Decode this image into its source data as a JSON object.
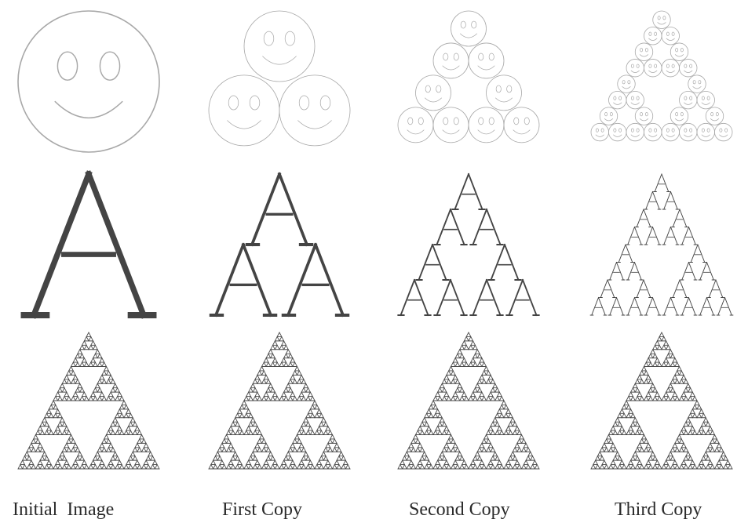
{
  "captions": [
    "Initial  Image",
    "First Copy",
    "Second Copy",
    "Third Copy"
  ],
  "rows": [
    "smiley-face",
    "letter-a",
    "sierpinski-triangle"
  ],
  "iterations": [
    0,
    1,
    2,
    3
  ],
  "colors": {
    "smiley": "#a8a8a8",
    "letter": "#444444",
    "triangle": "#4a4a4a",
    "caption": "#2a2a2a"
  }
}
